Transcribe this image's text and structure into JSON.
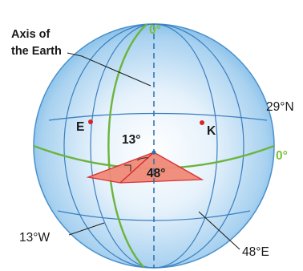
{
  "labels": {
    "axis_line1": "Axis of",
    "axis_line2": "the Earth",
    "prime_meridian": "0°",
    "equator": "0°",
    "latitude": "29°N",
    "point_e": "E",
    "point_k": "K",
    "angle_west": "13°",
    "angle_east": "48°",
    "longitude_west": "13°W",
    "longitude_east": "48°E"
  },
  "colors": {
    "globe_edge": "#3f8ecf",
    "meridian": "#2d6fb0",
    "green": "#6cb33f",
    "point": "#d7262a",
    "sector_fill": "#f08a78"
  }
}
